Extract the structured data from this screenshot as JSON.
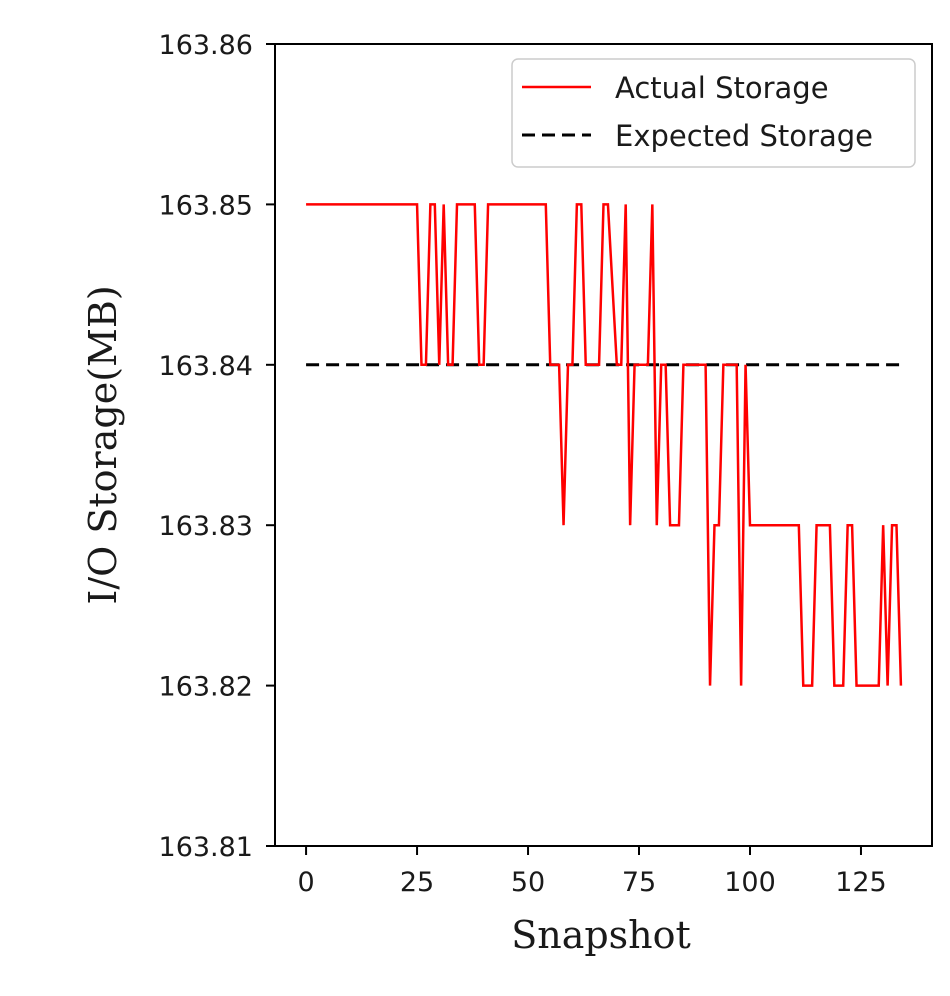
{
  "chart_data": {
    "type": "line",
    "title": "",
    "xlabel": "Snapshot",
    "ylabel": "I/O Storage(MB)",
    "xlim": [
      -7,
      141
    ],
    "ylim": [
      163.81,
      163.86
    ],
    "x_ticks": [
      0,
      25,
      50,
      75,
      100,
      125
    ],
    "x_tick_labels": [
      "0",
      "25",
      "50",
      "75",
      "100",
      "125"
    ],
    "y_ticks": [
      163.81,
      163.82,
      163.83,
      163.84,
      163.85,
      163.86
    ],
    "y_tick_labels": [
      "163.81",
      "163.82",
      "163.83",
      "163.84",
      "163.85",
      "163.86"
    ],
    "grid": false,
    "legend": {
      "position": "top-right"
    },
    "series": [
      {
        "name": "Actual Storage",
        "color": "#ff0000",
        "style": "solid",
        "x": [
          0,
          25,
          26,
          27,
          28,
          29,
          30,
          31,
          32,
          33,
          34,
          38,
          39,
          40,
          41,
          54,
          55,
          56,
          57,
          58,
          59,
          60,
          61,
          62,
          63,
          65,
          66,
          67,
          68,
          70,
          71,
          72,
          73,
          74,
          75,
          77,
          78,
          79,
          80,
          81,
          82,
          83,
          84,
          85,
          90,
          91,
          92,
          93,
          94,
          97,
          98,
          99,
          100,
          111,
          112,
          114,
          115,
          118,
          119,
          120,
          121,
          122,
          123,
          124,
          129,
          130,
          131,
          132,
          133,
          134
        ],
        "y": [
          163.85,
          163.85,
          163.84,
          163.84,
          163.85,
          163.85,
          163.84,
          163.85,
          163.84,
          163.84,
          163.85,
          163.85,
          163.84,
          163.84,
          163.85,
          163.85,
          163.84,
          163.84,
          163.84,
          163.83,
          163.84,
          163.84,
          163.85,
          163.85,
          163.84,
          163.84,
          163.84,
          163.85,
          163.85,
          163.84,
          163.84,
          163.85,
          163.83,
          163.84,
          163.84,
          163.84,
          163.85,
          163.83,
          163.84,
          163.84,
          163.83,
          163.83,
          163.83,
          163.84,
          163.84,
          163.82,
          163.83,
          163.83,
          163.84,
          163.84,
          163.82,
          163.84,
          163.83,
          163.83,
          163.82,
          163.82,
          163.83,
          163.83,
          163.82,
          163.82,
          163.82,
          163.83,
          163.83,
          163.82,
          163.82,
          163.83,
          163.82,
          163.83,
          163.83,
          163.82
        ]
      },
      {
        "name": "Expected Storage",
        "color": "#000000",
        "style": "dashed",
        "x": [
          0,
          134
        ],
        "y": [
          163.84,
          163.84
        ]
      }
    ]
  }
}
